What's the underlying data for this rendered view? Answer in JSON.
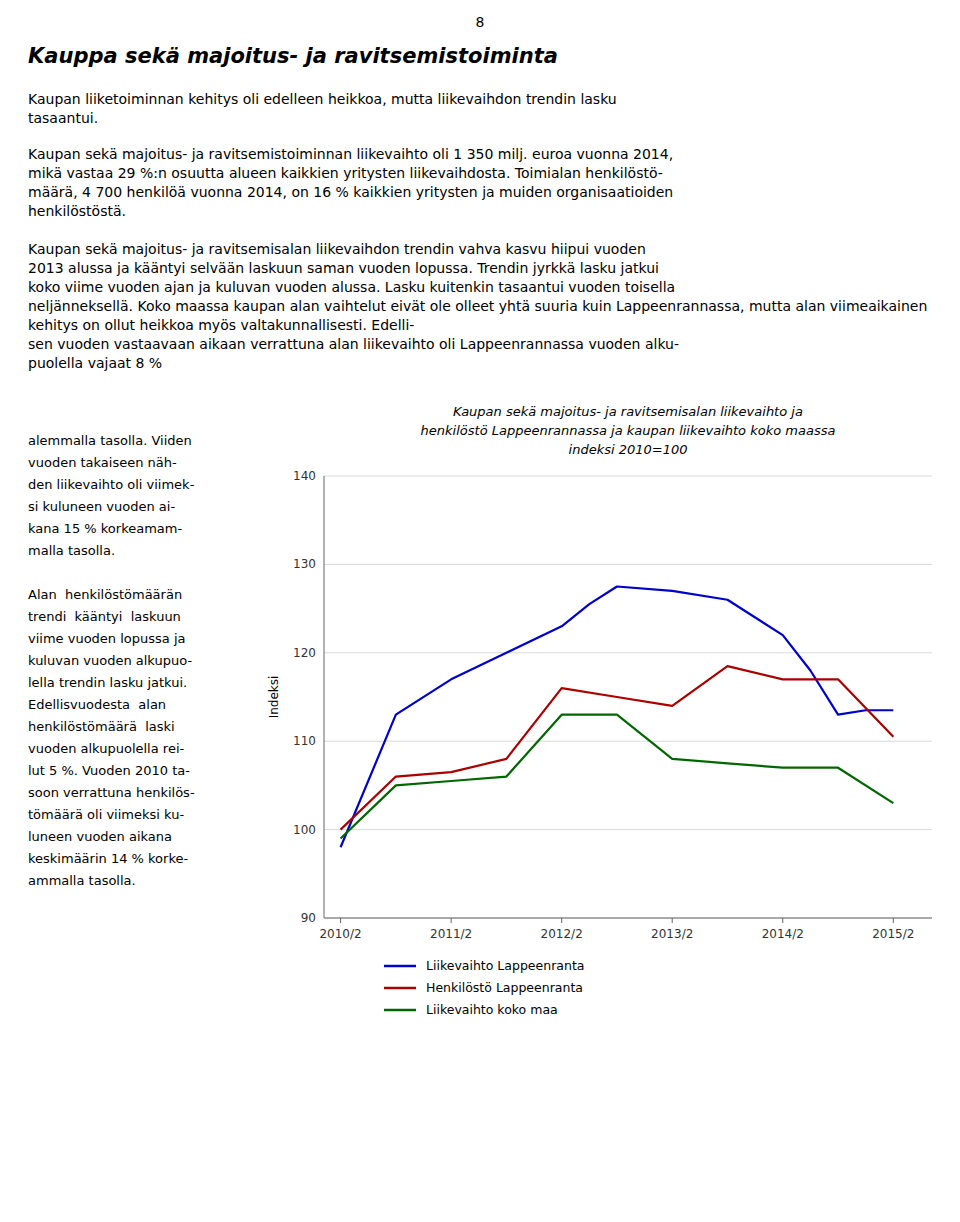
{
  "page_number": "8",
  "main_title": "Kauppa sekä majoitus- ja ravitsemistoiminta",
  "paragraphs": [
    "Kaupan liiketoiminnan kehitys oli edelleen heikkoa, mutta liikevaihdon trendin lasku\ntasaantui.",
    "Kaupan sekä majoitus- ja ravitsemistoiminnan liikevaihto oli 1 350 milj. euroa vuonna 2014,\nmikä vastaa 29 %:n osuutta alueen kaikkien yritysten liikevaihdosta. Toimialan henkilöstö-\nmäärä, 4 700 henkilöä vuonna 2014, on 16 % kaikkien yritysten ja muiden organisaatioiden\nhenkilöstöstä.",
    "Kaupan sekä majoitus- ja ravitsemisalan liikevaihdon trendin vahva kasvu hiipui vuoden\n2013 alussa ja kääntyi selvään laskuun saman vuoden lopussa. Trendin jyrkkä lasku jatkui\nkoko viime vuoden ajan ja kuluvan vuoden alussa. Lasku kuitenkin tasaantui vuoden toisella\nneljänneksellä. Koko maassa kaupan alan vaihtelut eivät ole olleet yhtä suuria kuin Lappeenrannassa, mutta alan viimeaikainen kehitys on ollut heikkoa myös valtakunnallisesti. Edelli-\nsen vuoden vastaavaan aikaan verrattuna alan liikevaihto oli Lappeenrannassa vuoden alku-\npuolella vajaat 8 %"
  ],
  "text_left_col": [
    [
      "alemmalla tasolla. Viiden",
      "vuoden takaiseen näh-",
      "den liikevaihto oli viimek-",
      "si kuluneen vuoden ai-",
      "kana 15 % korkeamam-",
      "malla tasolla."
    ],
    [
      "Alan  henkilöstömäärän",
      "trendi  kääntyi  laskuun",
      "viime vuoden lopussa ja",
      "kuluvan vuoden alkupuo-",
      "lella trendin lasku jatkui.",
      "Edellisvuodesta  alan",
      "henkilöstömäärä  laski",
      "vuoden alkupuolella rei-",
      "lut 5 %. Vuoden 2010 ta-",
      "soon verrattuna henkilös-",
      "tömäärä oli viimeksi ku-",
      "luneen vuoden aikana",
      "keskimäärin 14 % korke-",
      "ammalla tasolla."
    ]
  ],
  "chart_data": {
    "type": "line",
    "title": [
      "Kaupan sekä majoitus- ja ravitsemisalan liikevaihto ja",
      "henkilöstö Lappeenrannassa ja kaupan liikevaihto koko maassa"
    ],
    "subtitle": "indeksi 2010=100",
    "ylabel": "Indeksi",
    "xlim": [
      -0.15,
      5.35
    ],
    "xticks": [
      {
        "value": 0,
        "label": "2010/2"
      },
      {
        "value": 1,
        "label": "2011/2"
      },
      {
        "value": 2,
        "label": "2012/2"
      },
      {
        "value": 3,
        "label": "2013/2"
      },
      {
        "value": 4,
        "label": "2014/2"
      },
      {
        "value": 5,
        "label": "2015/2"
      }
    ],
    "ylim": [
      90,
      140
    ],
    "yticks": [
      90,
      100,
      110,
      120,
      130,
      140
    ],
    "grid": true,
    "legend": "bottom",
    "series": [
      {
        "name": "Liikevaihto Lappeenranta",
        "color": "#0000CC",
        "x": [
          0,
          0.5,
          1.0,
          1.5,
          2.0,
          2.25,
          2.5,
          3.0,
          3.5,
          4.0,
          4.25,
          4.5,
          4.75,
          5.0
        ],
        "values": [
          98.0,
          113.0,
          117.0,
          120.0,
          123.0,
          125.5,
          127.5,
          127.0,
          126.0,
          122.0,
          118.0,
          113.0,
          113.5,
          113.5
        ]
      },
      {
        "name": "Henkilöstö Lappeenranta",
        "color": "#AA0000",
        "x": [
          0,
          0.5,
          1.0,
          1.5,
          2.0,
          2.5,
          3.0,
          3.5,
          4.0,
          4.5,
          5.0
        ],
        "values": [
          100.0,
          106.0,
          106.5,
          108.0,
          116.0,
          115.0,
          114.0,
          118.5,
          117.0,
          117.0,
          110.5
        ]
      },
      {
        "name": "Liikevaihto koko maa",
        "color": "#006600",
        "x": [
          0,
          0.5,
          1.0,
          1.5,
          2.0,
          2.5,
          3.0,
          3.5,
          4.0,
          4.5,
          5.0
        ],
        "values": [
          99.0,
          105.0,
          105.5,
          106.0,
          113.0,
          113.0,
          108.0,
          107.5,
          107.0,
          107.0,
          103.0
        ]
      }
    ]
  }
}
